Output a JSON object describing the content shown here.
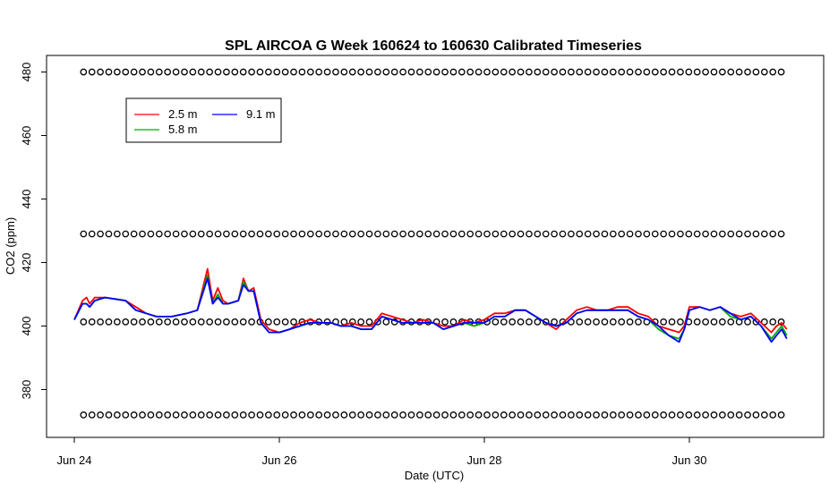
{
  "chart_data": {
    "type": "line",
    "title": "SPL AIRCOA G  Week 160624 to 160630  Calibrated Timeseries",
    "xlabel": "Date (UTC)",
    "ylabel": "CO2 (ppm)",
    "xlim": [
      0,
      7.5
    ],
    "ylim": [
      366,
      484
    ],
    "x_ticks": [
      {
        "value": 0,
        "label": "Jun 24"
      },
      {
        "value": 2,
        "label": "Jun 26"
      },
      {
        "value": 4,
        "label": "Jun 28"
      },
      {
        "value": 6,
        "label": "Jun 30"
      }
    ],
    "y_ticks": [
      {
        "value": 380,
        "label": "380"
      },
      {
        "value": 400,
        "label": "400"
      },
      {
        "value": 420,
        "label": "420"
      },
      {
        "value": 440,
        "label": "440"
      },
      {
        "value": 460,
        "label": "460"
      },
      {
        "value": 480,
        "label": "480"
      }
    ],
    "legend": {
      "placement": "top-left",
      "entries": [
        {
          "label": "2.5 m",
          "color": "#ff0000"
        },
        {
          "label": "5.8 m",
          "color": "#00aa00"
        },
        {
          "label": "9.1 m",
          "color": "#0000ff"
        }
      ]
    },
    "series": [
      {
        "name": "2.5 m",
        "color": "#ff0000",
        "x": [
          0.0,
          0.08,
          0.12,
          0.15,
          0.2,
          0.3,
          0.5,
          0.6,
          0.7,
          0.8,
          0.95,
          1.1,
          1.2,
          1.3,
          1.35,
          1.4,
          1.45,
          1.5,
          1.6,
          1.65,
          1.7,
          1.75,
          1.82,
          1.9,
          2.0,
          2.1,
          2.2,
          2.3,
          2.4,
          2.5,
          2.6,
          2.7,
          2.8,
          2.9,
          3.0,
          3.1,
          3.2,
          3.3,
          3.4,
          3.5,
          3.6,
          3.7,
          3.8,
          3.9,
          4.0,
          4.1,
          4.2,
          4.3,
          4.4,
          4.5,
          4.6,
          4.7,
          4.8,
          4.9,
          5.0,
          5.1,
          5.2,
          5.3,
          5.4,
          5.5,
          5.6,
          5.7,
          5.8,
          5.9,
          5.95,
          6.0,
          6.1,
          6.2,
          6.3,
          6.4,
          6.5,
          6.6,
          6.7,
          6.8,
          6.85,
          6.9,
          6.95
        ],
        "y": [
          402,
          408,
          409,
          407,
          409,
          409,
          408,
          406,
          404,
          403,
          403,
          404,
          405,
          418,
          408,
          412,
          408,
          407,
          408,
          415,
          411,
          412,
          402,
          399,
          398,
          399,
          401,
          402,
          401,
          401,
          400,
          401,
          400,
          400,
          404,
          403,
          402,
          401,
          402,
          401,
          400,
          400,
          402,
          401,
          402,
          404,
          404,
          405,
          405,
          403,
          401,
          399,
          402,
          405,
          406,
          405,
          405,
          406,
          406,
          404,
          403,
          400,
          399,
          398,
          400,
          406,
          406,
          405,
          406,
          404,
          403,
          404,
          401,
          398,
          400,
          401,
          399
        ]
      },
      {
        "name": "5.8 m",
        "color": "#00aa00",
        "x": [
          0.0,
          0.08,
          0.12,
          0.15,
          0.2,
          0.3,
          0.5,
          0.6,
          0.7,
          0.8,
          0.95,
          1.1,
          1.2,
          1.3,
          1.35,
          1.4,
          1.45,
          1.5,
          1.6,
          1.65,
          1.7,
          1.75,
          1.82,
          1.9,
          2.0,
          2.1,
          2.2,
          2.3,
          2.4,
          2.5,
          2.6,
          2.7,
          2.8,
          2.9,
          3.0,
          3.1,
          3.2,
          3.3,
          3.4,
          3.5,
          3.6,
          3.7,
          3.8,
          3.9,
          4.0,
          4.1,
          4.2,
          4.3,
          4.4,
          4.5,
          4.6,
          4.7,
          4.8,
          4.9,
          5.0,
          5.1,
          5.2,
          5.3,
          5.4,
          5.5,
          5.6,
          5.7,
          5.8,
          5.9,
          5.95,
          6.0,
          6.1,
          6.2,
          6.3,
          6.4,
          6.5,
          6.6,
          6.7,
          6.8,
          6.85,
          6.9,
          6.95
        ],
        "y": [
          402,
          407,
          407,
          406,
          408,
          409,
          408,
          405,
          404,
          403,
          403,
          404,
          405,
          416,
          407,
          410,
          407,
          407,
          408,
          414,
          411,
          411,
          401,
          398,
          398,
          399,
          400,
          401,
          401,
          401,
          400,
          400,
          399,
          399,
          403,
          402,
          401,
          401,
          401,
          401,
          399,
          400,
          401,
          400,
          401,
          403,
          403,
          405,
          405,
          403,
          401,
          400,
          401,
          404,
          405,
          405,
          405,
          405,
          405,
          403,
          402,
          399,
          397,
          396,
          399,
          405,
          406,
          405,
          406,
          403,
          402,
          403,
          400,
          396,
          398,
          400,
          397
        ]
      },
      {
        "name": "9.1 m",
        "color": "#0000ff",
        "x": [
          0.0,
          0.08,
          0.12,
          0.15,
          0.2,
          0.3,
          0.5,
          0.6,
          0.7,
          0.8,
          0.95,
          1.1,
          1.2,
          1.3,
          1.35,
          1.4,
          1.45,
          1.5,
          1.6,
          1.65,
          1.7,
          1.75,
          1.82,
          1.9,
          2.0,
          2.1,
          2.2,
          2.3,
          2.4,
          2.5,
          2.6,
          2.7,
          2.8,
          2.9,
          3.0,
          3.1,
          3.2,
          3.3,
          3.4,
          3.5,
          3.6,
          3.7,
          3.8,
          3.9,
          4.0,
          4.1,
          4.2,
          4.3,
          4.4,
          4.5,
          4.6,
          4.7,
          4.8,
          4.9,
          5.0,
          5.1,
          5.2,
          5.3,
          5.4,
          5.5,
          5.6,
          5.7,
          5.8,
          5.9,
          5.95,
          6.0,
          6.1,
          6.2,
          6.3,
          6.4,
          6.5,
          6.6,
          6.7,
          6.8,
          6.85,
          6.9,
          6.95
        ],
        "y": [
          402,
          407,
          407,
          406,
          408,
          409,
          408,
          405,
          404,
          403,
          403,
          404,
          405,
          415,
          407,
          409,
          407,
          407,
          408,
          413,
          411,
          411,
          401,
          398,
          398,
          399,
          400,
          401,
          401,
          401,
          400,
          400,
          399,
          399,
          403,
          402,
          401,
          401,
          401,
          401,
          399,
          400,
          401,
          401,
          401,
          403,
          403,
          405,
          405,
          403,
          401,
          400,
          401,
          404,
          405,
          405,
          405,
          405,
          405,
          403,
          402,
          400,
          397,
          395,
          399,
          405,
          406,
          405,
          406,
          404,
          402,
          403,
          400,
          395,
          397,
          399,
          396
        ]
      }
    ],
    "reference_markers": {
      "style": "open-circle",
      "levels": [
        480,
        429,
        401.3,
        372
      ],
      "x_start": 0.09,
      "x_end": 6.95,
      "spacing": 0.082
    },
    "grid": false
  }
}
